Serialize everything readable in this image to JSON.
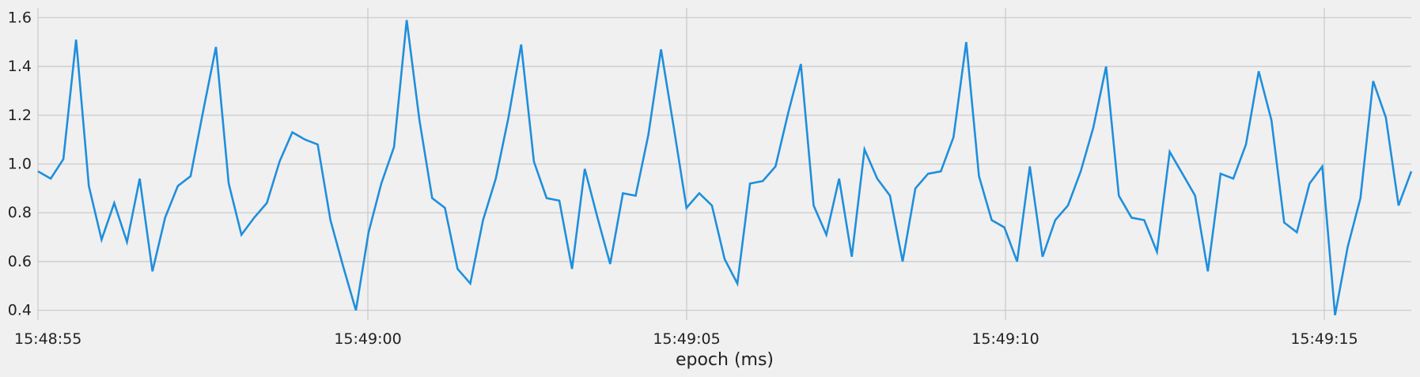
{
  "chart_data": {
    "type": "line",
    "title": "",
    "xlabel": "epoch (ms)",
    "ylabel": "",
    "x_tick_labels": [
      "15:48:55",
      "15:49:00",
      "15:49:05",
      "15:49:10",
      "15:49:15"
    ],
    "y_tick_labels": [
      "0.4",
      "0.6",
      "0.8",
      "1.0",
      "1.2",
      "1.4",
      "1.6"
    ],
    "y_ticks": [
      0.4,
      0.6,
      0.8,
      1.0,
      1.2,
      1.4,
      1.6
    ],
    "ylim": [
      0.36,
      1.64
    ],
    "xlim_seconds_from_first_tick": [
      0,
      21.7
    ],
    "grid": true,
    "colors": {
      "line": "#1f8fdc",
      "grid": "#cbcbcb",
      "background": "#f0f0f0"
    },
    "series": [
      {
        "values": [
          0.97,
          0.94,
          1.02,
          1.51,
          0.91,
          0.69,
          0.84,
          0.68,
          0.94,
          0.56,
          0.78,
          0.91,
          0.95,
          1.22,
          1.48,
          0.92,
          0.71,
          0.78,
          0.84,
          1.01,
          1.13,
          1.1,
          1.08,
          0.77,
          0.58,
          0.4,
          0.72,
          0.92,
          1.07,
          1.59,
          1.18,
          0.86,
          0.82,
          0.57,
          0.51,
          0.77,
          0.94,
          1.19,
          1.49,
          1.01,
          0.86,
          0.85,
          0.57,
          0.98,
          0.78,
          0.59,
          0.88,
          0.87,
          1.12,
          1.47,
          1.15,
          0.82,
          0.88,
          0.83,
          0.61,
          0.51,
          0.92,
          0.93,
          0.99,
          1.21,
          1.41,
          0.83,
          0.71,
          0.94,
          0.62,
          1.06,
          0.94,
          0.87,
          0.6,
          0.9,
          0.96,
          0.97,
          1.11,
          1.5,
          0.95,
          0.77,
          0.74,
          0.6,
          0.99,
          0.62,
          0.77,
          0.83,
          0.97,
          1.15,
          1.4,
          0.87,
          0.78,
          0.77,
          0.64,
          1.05,
          0.96,
          0.87,
          0.56,
          0.96,
          0.94,
          1.08,
          1.38,
          1.18,
          0.76,
          0.72,
          0.92,
          0.99,
          0.38,
          0.66,
          0.86,
          1.34,
          1.19,
          0.83,
          0.97
        ]
      }
    ]
  }
}
